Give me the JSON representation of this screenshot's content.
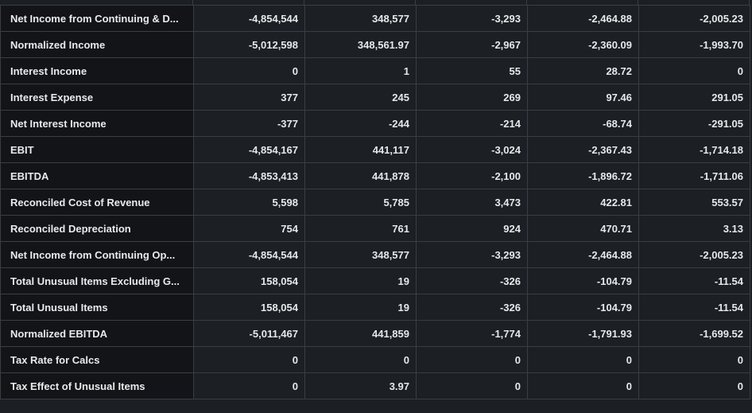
{
  "table": {
    "rows": [
      {
        "label": "Net Income from Continuing & D...",
        "values": [
          "-4,854,544",
          "348,577",
          "-3,293",
          "-2,464.88",
          "-2,005.23"
        ]
      },
      {
        "label": "Normalized Income",
        "values": [
          "-5,012,598",
          "348,561.97",
          "-2,967",
          "-2,360.09",
          "-1,993.70"
        ]
      },
      {
        "label": "Interest Income",
        "values": [
          "0",
          "1",
          "55",
          "28.72",
          "0"
        ]
      },
      {
        "label": "Interest Expense",
        "values": [
          "377",
          "245",
          "269",
          "97.46",
          "291.05"
        ]
      },
      {
        "label": "Net Interest Income",
        "values": [
          "-377",
          "-244",
          "-214",
          "-68.74",
          "-291.05"
        ]
      },
      {
        "label": "EBIT",
        "values": [
          "-4,854,167",
          "441,117",
          "-3,024",
          "-2,367.43",
          "-1,714.18"
        ]
      },
      {
        "label": "EBITDA",
        "values": [
          "-4,853,413",
          "441,878",
          "-2,100",
          "-1,896.72",
          "-1,711.06"
        ]
      },
      {
        "label": "Reconciled Cost of Revenue",
        "values": [
          "5,598",
          "5,785",
          "3,473",
          "422.81",
          "553.57"
        ]
      },
      {
        "label": "Reconciled Depreciation",
        "values": [
          "754",
          "761",
          "924",
          "470.71",
          "3.13"
        ]
      },
      {
        "label": "Net Income from Continuing Op...",
        "values": [
          "-4,854,544",
          "348,577",
          "-3,293",
          "-2,464.88",
          "-2,005.23"
        ]
      },
      {
        "label": "Total Unusual Items Excluding G...",
        "values": [
          "158,054",
          "19",
          "-326",
          "-104.79",
          "-11.54"
        ]
      },
      {
        "label": "Total Unusual Items",
        "values": [
          "158,054",
          "19",
          "-326",
          "-104.79",
          "-11.54"
        ]
      },
      {
        "label": "Normalized EBITDA",
        "values": [
          "-5,011,467",
          "441,859",
          "-1,774",
          "-1,791.93",
          "-1,699.52"
        ]
      },
      {
        "label": "Tax Rate for Calcs",
        "values": [
          "0",
          "0",
          "0",
          "0",
          "0"
        ]
      },
      {
        "label": "Tax Effect of Unusual Items",
        "values": [
          "0",
          "3.97",
          "0",
          "0",
          "0"
        ]
      }
    ]
  }
}
